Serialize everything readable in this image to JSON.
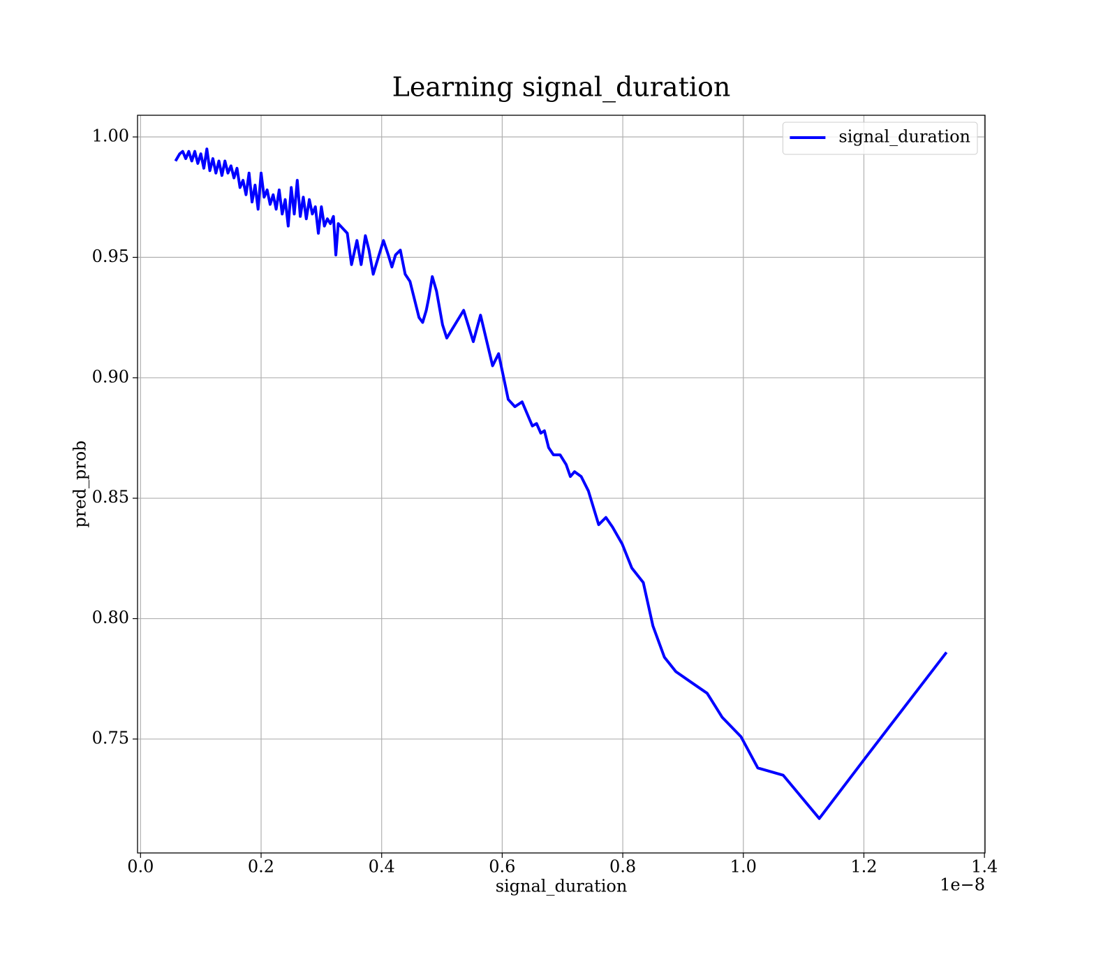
{
  "chart_data": {
    "type": "line",
    "title": "Learning signal_duration",
    "xlabel": "signal_duration",
    "ylabel": "pred_prob",
    "x_offset": "1e−8",
    "x": [
      0.058,
      0.065,
      0.07,
      0.075,
      0.08,
      0.085,
      0.09,
      0.095,
      0.1,
      0.105,
      0.11,
      0.115,
      0.12,
      0.125,
      0.13,
      0.135,
      0.14,
      0.145,
      0.15,
      0.155,
      0.16,
      0.165,
      0.17,
      0.175,
      0.18,
      0.185,
      0.19,
      0.195,
      0.2,
      0.205,
      0.21,
      0.215,
      0.22,
      0.225,
      0.23,
      0.235,
      0.24,
      0.245,
      0.25,
      0.255,
      0.26,
      0.265,
      0.27,
      0.275,
      0.28,
      0.285,
      0.29,
      0.295,
      0.3,
      0.305,
      0.31,
      0.315,
      0.32,
      0.324,
      0.328,
      0.343,
      0.35,
      0.359,
      0.366,
      0.373,
      0.379,
      0.386,
      0.392,
      0.403,
      0.411,
      0.417,
      0.423,
      0.431,
      0.439,
      0.447,
      0.453,
      0.462,
      0.468,
      0.474,
      0.478,
      0.484,
      0.491,
      0.501,
      0.508,
      0.536,
      0.552,
      0.564,
      0.584,
      0.594,
      0.61,
      0.621,
      0.633,
      0.65,
      0.657,
      0.664,
      0.67,
      0.677,
      0.685,
      0.696,
      0.706,
      0.713,
      0.72,
      0.731,
      0.743,
      0.76,
      0.772,
      0.783,
      0.799,
      0.815,
      0.834,
      0.85,
      0.869,
      0.888,
      0.911,
      0.94,
      0.965,
      0.996,
      1.024,
      1.066,
      1.126,
      1.205,
      1.337
    ],
    "series": [
      {
        "name": "signal_duration",
        "color": "#0000ff",
        "values": [
          0.99,
          0.993,
          0.994,
          0.991,
          0.994,
          0.99,
          0.994,
          0.989,
          0.993,
          0.987,
          0.995,
          0.986,
          0.991,
          0.985,
          0.99,
          0.984,
          0.99,
          0.985,
          0.988,
          0.983,
          0.987,
          0.979,
          0.982,
          0.976,
          0.985,
          0.973,
          0.98,
          0.97,
          0.985,
          0.975,
          0.978,
          0.972,
          0.976,
          0.97,
          0.978,
          0.968,
          0.974,
          0.963,
          0.979,
          0.968,
          0.982,
          0.967,
          0.975,
          0.966,
          0.974,
          0.968,
          0.971,
          0.96,
          0.971,
          0.963,
          0.966,
          0.964,
          0.967,
          0.951,
          0.964,
          0.96,
          0.947,
          0.957,
          0.947,
          0.959,
          0.953,
          0.943,
          0.948,
          0.957,
          0.951,
          0.946,
          0.951,
          0.953,
          0.943,
          0.94,
          0.934,
          0.925,
          0.923,
          0.928,
          0.933,
          0.942,
          0.936,
          0.922,
          0.9165,
          0.928,
          0.915,
          0.926,
          0.905,
          0.91,
          0.891,
          0.888,
          0.89,
          0.88,
          0.881,
          0.877,
          0.878,
          0.871,
          0.868,
          0.868,
          0.864,
          0.859,
          0.861,
          0.859,
          0.853,
          0.839,
          0.842,
          0.838,
          0.831,
          0.821,
          0.815,
          0.797,
          0.784,
          0.778,
          0.774,
          0.769,
          0.759,
          0.751,
          0.738,
          0.735,
          0.717,
          0.743,
          0.786
        ]
      }
    ],
    "xlim": [
      -0.005,
      1.401
    ],
    "ylim": [
      0.7027,
      1.009
    ],
    "xticks": [
      {
        "value": 0,
        "label": "0.0"
      },
      0.2,
      0.4,
      0.6,
      0.8,
      {
        "value": 1,
        "label": "1.0"
      },
      1.2,
      1.4
    ],
    "yticks": [
      {
        "value": 0.75,
        "label": "0.75"
      },
      {
        "value": 0.8,
        "label": "0.80"
      },
      {
        "value": 0.85,
        "label": "0.85"
      },
      {
        "value": 0.9,
        "label": "0.90"
      },
      {
        "value": 0.95,
        "label": "0.95"
      },
      {
        "value": 1,
        "label": "1.00"
      }
    ],
    "grid": true,
    "legend": "upper right"
  }
}
